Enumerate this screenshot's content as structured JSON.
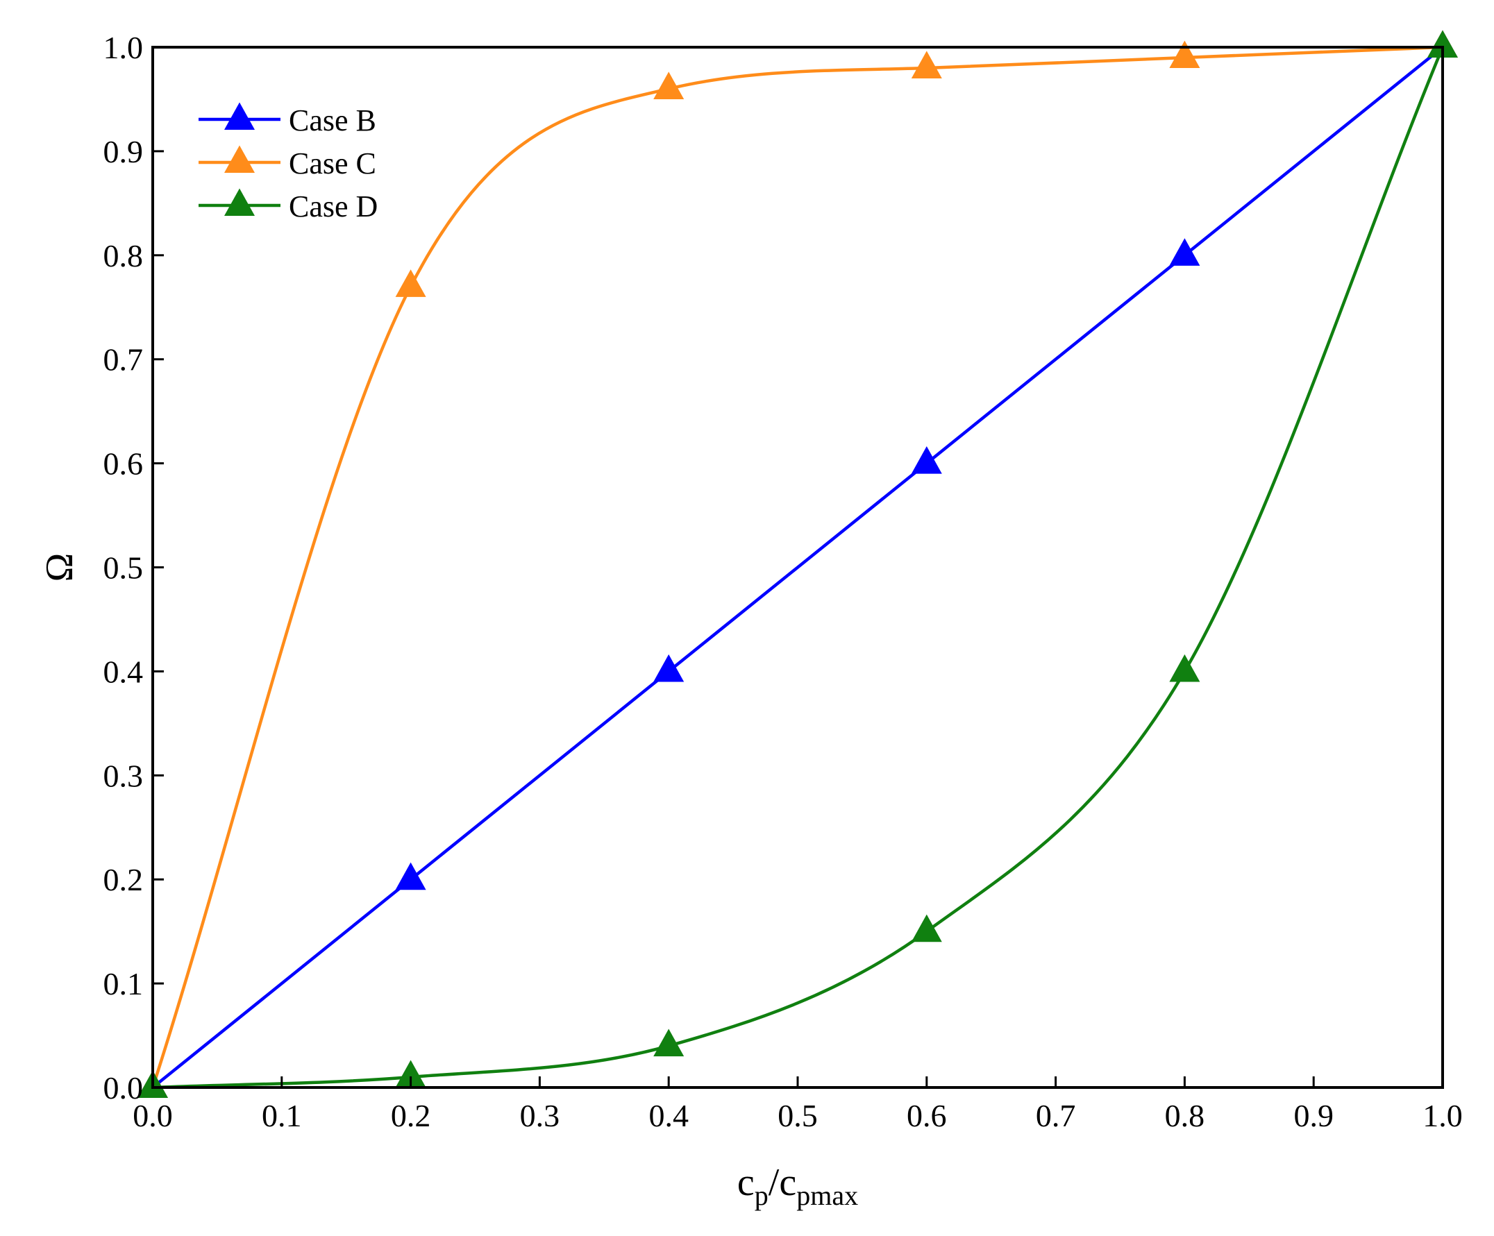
{
  "chart_data": {
    "type": "line",
    "title": "",
    "xlabel": {
      "main": "c",
      "sub": "p",
      "sep": "/c",
      "sub2": "pmax"
    },
    "ylabel": "Ω",
    "xlim": [
      0.0,
      1.0
    ],
    "ylim": [
      0.0,
      1.0
    ],
    "xticks": [
      "0.0",
      "0.1",
      "0.2",
      "0.3",
      "0.4",
      "0.5",
      "0.6",
      "0.7",
      "0.8",
      "0.9",
      "1.0"
    ],
    "yticks": [
      "0.0",
      "0.1",
      "0.2",
      "0.3",
      "0.4",
      "0.5",
      "0.6",
      "0.7",
      "0.8",
      "0.9",
      "1.0"
    ],
    "grid": false,
    "legend_position": "top-left",
    "marker": "triangle",
    "series": [
      {
        "name": "Case B",
        "color": "#0000ff",
        "x": [
          0.0,
          0.2,
          0.4,
          0.6,
          0.8,
          1.0
        ],
        "y": [
          0.0,
          0.2,
          0.4,
          0.6,
          0.8,
          1.0
        ],
        "smooth": false
      },
      {
        "name": "Case C",
        "color": "#ff8c1a",
        "x": [
          0.0,
          0.2,
          0.4,
          0.6,
          0.8,
          1.0
        ],
        "y": [
          0.0,
          0.77,
          0.96,
          0.98,
          0.99,
          1.0
        ],
        "smooth": true
      },
      {
        "name": "Case D",
        "color": "#108010",
        "x": [
          0.0,
          0.2,
          0.4,
          0.6,
          0.8,
          1.0
        ],
        "y": [
          0.0,
          0.01,
          0.04,
          0.15,
          0.4,
          1.0
        ],
        "smooth": true
      }
    ]
  }
}
